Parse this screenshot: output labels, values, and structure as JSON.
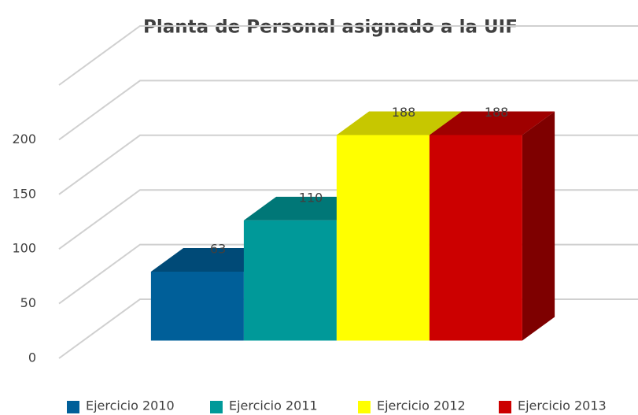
{
  "chart_data": {
    "type": "bar3d",
    "title": "Planta de Personal asignado a la UIF",
    "categories": [
      null
    ],
    "series": [
      {
        "name": "Ejercicio 2010",
        "color": "#005f99",
        "values": [
          63
        ]
      },
      {
        "name": "Ejercicio 2011",
        "color": "#009999",
        "values": [
          110
        ]
      },
      {
        "name": "Ejercicio 2012",
        "color": "#ffff00",
        "values": [
          188
        ]
      },
      {
        "name": "Ejercicio 2013",
        "color": "#cc0000",
        "values": [
          188
        ]
      }
    ],
    "ylim": [
      0,
      250
    ],
    "yticks": [
      0,
      50,
      100,
      150,
      200
    ],
    "grid": true,
    "legend": "bottom"
  }
}
